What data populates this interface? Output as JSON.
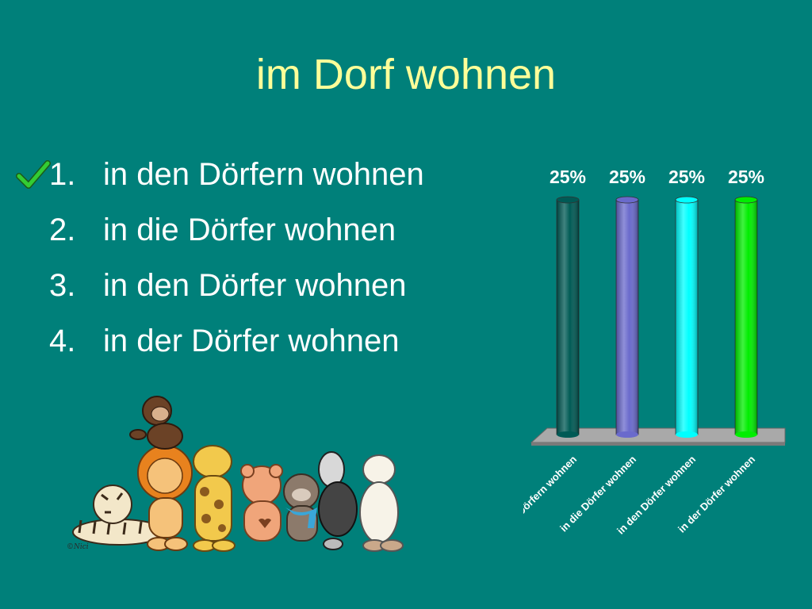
{
  "slide": {
    "title": "im Dorf wohnen",
    "correct_marker": "check-icon"
  },
  "options": [
    {
      "num": "1.",
      "text": "in den Dörfern wohnen",
      "correct": true
    },
    {
      "num": "2.",
      "text": "in die Dörfer wohnen",
      "correct": false
    },
    {
      "num": "3.",
      "text": "in den Dörfer wohnen",
      "correct": false
    },
    {
      "num": "4.",
      "text": "in der Dörfer wohnen",
      "correct": false
    }
  ],
  "chart_data": {
    "type": "bar",
    "categories": [
      "in den Dörfern wohnen",
      "in die Dörfer wohnen",
      "in den Dörfer wohnen",
      "in der Dörfer wohnen"
    ],
    "values": [
      25,
      25,
      25,
      25
    ],
    "data_labels": [
      "25%",
      "25%",
      "25%",
      "25%"
    ],
    "colors": [
      "#005a55",
      "#6a6acc",
      "#00ffff",
      "#00ee00"
    ],
    "ylim": [
      0,
      25
    ],
    "grid": false,
    "three_d": true
  },
  "illustration": {
    "description_icon": "stuffed-animals-illustration",
    "signature": "©Nici"
  }
}
